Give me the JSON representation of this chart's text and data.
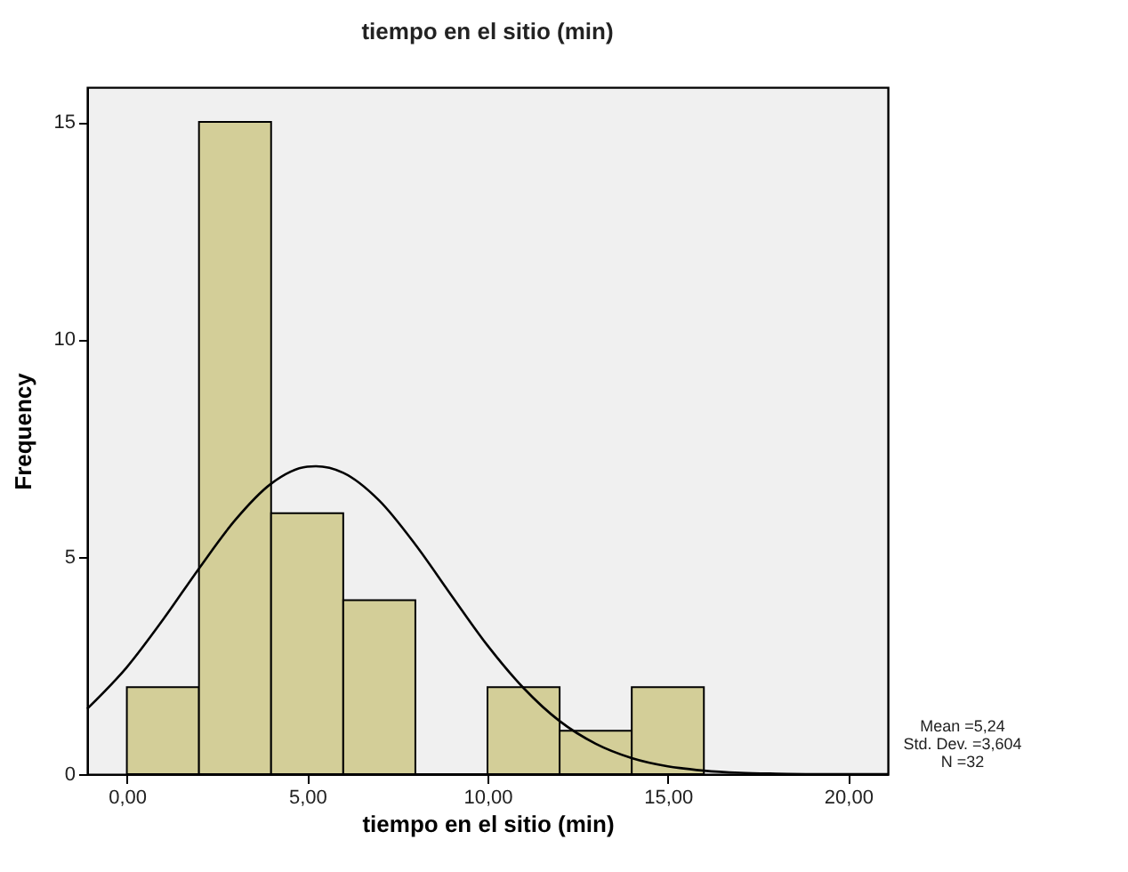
{
  "chart_data": {
    "type": "histogram",
    "title": "tiempo en el sitio (min)",
    "xlabel": "tiempo en el sitio (min)",
    "ylabel": "Frequency",
    "annotations": [
      "Mean =5,24",
      "Std. Dev. =3,604",
      "N =32"
    ],
    "bins": [
      0,
      2,
      4,
      6,
      8,
      10,
      12,
      14,
      16
    ],
    "series": [
      {
        "color": "#d3ce98",
        "values": [
          2,
          15,
          6,
          4,
          0,
          2,
          1,
          2
        ]
      },
      {
        "type": "line",
        "color": "#000000",
        "x": [
          -1.1,
          0,
          1,
          2,
          3,
          4,
          5,
          5.24,
          6,
          7,
          8,
          9,
          10,
          11,
          12,
          13,
          14,
          15,
          16,
          17,
          18,
          19,
          21.1
        ],
        "values": [
          1.5,
          2.46,
          3.55,
          4.73,
          5.84,
          6.68,
          7.07,
          7.08,
          6.93,
          6.29,
          5.28,
          4.11,
          2.96,
          1.98,
          1.22,
          0.7,
          0.37,
          0.18,
          0.08,
          0.03,
          0.01,
          0,
          0
        ]
      }
    ],
    "xlim": [
      -1.1,
      21.1
    ],
    "ylim": [
      0,
      15.8
    ],
    "xticks": [
      {
        "value": 0,
        "label": "0,00"
      },
      {
        "value": 5,
        "label": "5,00"
      },
      {
        "value": 10,
        "label": "10,00"
      },
      {
        "value": 15,
        "label": "15,00"
      },
      {
        "value": 20,
        "label": "20,00"
      }
    ],
    "yticks": [
      0,
      5,
      10,
      15
    ],
    "grid": false
  }
}
